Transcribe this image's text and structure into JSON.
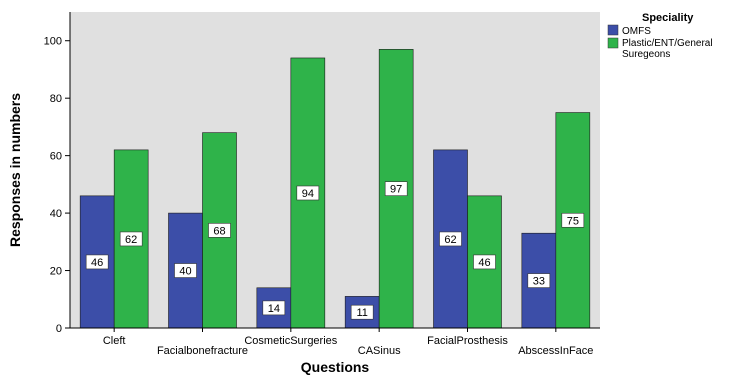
{
  "chart_data": {
    "type": "bar",
    "categories": [
      "Cleft",
      "Facialbonefracture",
      "CosmeticSurgeries",
      "CASinus",
      "FacialProsthesis",
      "AbscessInFace"
    ],
    "series": [
      {
        "name": "OMFS",
        "values": [
          46,
          40,
          14,
          11,
          62,
          33
        ],
        "color": "#3c4ea8"
      },
      {
        "name": "Plastic/ENT/General Suregeons",
        "values": [
          62,
          68,
          94,
          97,
          46,
          75
        ],
        "color": "#2fb34a"
      }
    ],
    "xlabel": "Questions",
    "ylabel": "Responses in numbers",
    "ylim": [
      0,
      110
    ],
    "yticks": [
      0,
      20,
      40,
      60,
      80,
      100
    ],
    "legend_title": "Speciality",
    "legend_labels": [
      "OMFS",
      "Plastic/ENT/General",
      "Suregeons"
    ],
    "legend_position": "right",
    "plot_background": "#e0e0e0",
    "grid": false
  }
}
